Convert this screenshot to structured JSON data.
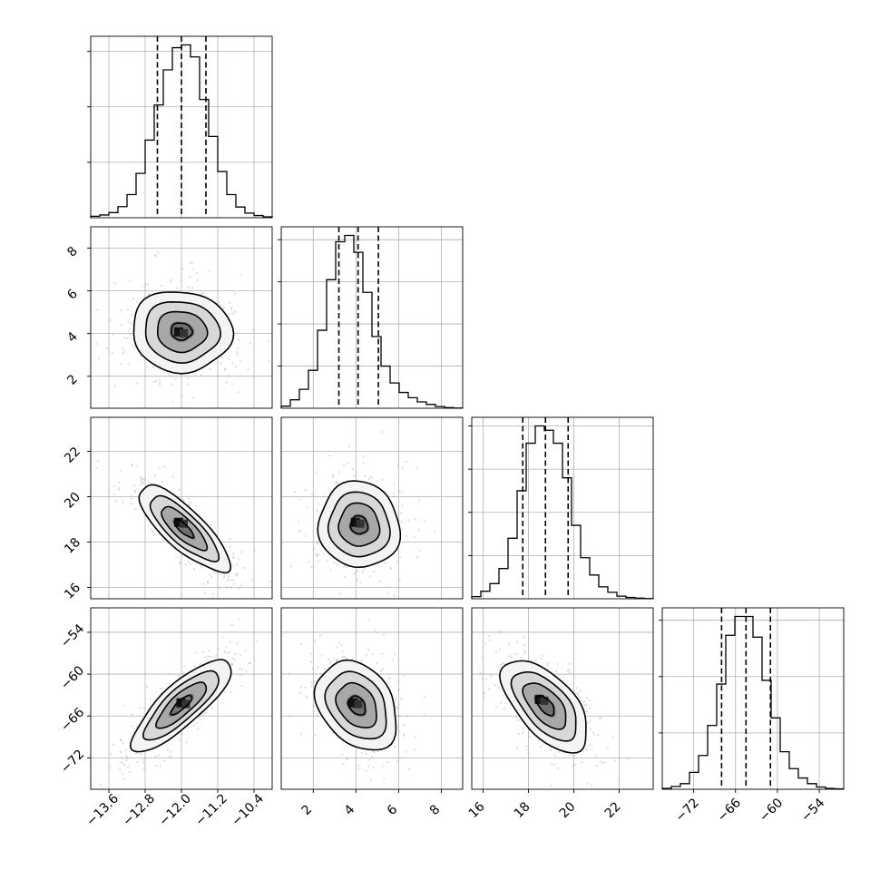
{
  "chart_data": {
    "type": "corner",
    "grid": true,
    "parameters": [
      {
        "range": [
          -14.0,
          -10.0
        ],
        "ticks": [
          -13.6,
          -12.8,
          -12.0,
          -11.2,
          -10.4
        ],
        "tick_labels": [
          "−13.6",
          "−12.8",
          "−12.0",
          "−11.2",
          "−10.4"
        ],
        "quantiles": [
          -12.53,
          -12.0,
          -11.46
        ],
        "hist_ticks": [
          300,
          600,
          900
        ],
        "hist": [
          8,
          15,
          28,
          60,
          125,
          240,
          420,
          610,
          800,
          920,
          935,
          870,
          640,
          440,
          250,
          125,
          58,
          25,
          12,
          5
        ]
      },
      {
        "range": [
          0.5,
          9.0
        ],
        "ticks": [
          2,
          4,
          6,
          8
        ],
        "tick_labels": [
          "2",
          "4",
          "6",
          "8"
        ],
        "quantiles": [
          3.2,
          4.1,
          5.05
        ],
        "hist_ticks": [
          200,
          400,
          600,
          800
        ],
        "hist": [
          10,
          40,
          90,
          180,
          370,
          610,
          790,
          820,
          740,
          550,
          340,
          200,
          120,
          75,
          50,
          30,
          18,
          8,
          3,
          1
        ]
      },
      {
        "range": [
          15.5,
          23.5
        ],
        "ticks": [
          16,
          18,
          20,
          22
        ],
        "tick_labels": [
          "16",
          "18",
          "20",
          "22"
        ],
        "quantiles": [
          17.75,
          18.75,
          19.75
        ],
        "hist_ticks": [
          200,
          400,
          600,
          800
        ],
        "hist": [
          10,
          35,
          70,
          140,
          280,
          500,
          720,
          800,
          780,
          720,
          560,
          340,
          190,
          110,
          55,
          30,
          12,
          6,
          3,
          1
        ]
      },
      {
        "range": [
          -76.5,
          -50.5
        ],
        "ticks": [
          -72,
          -66,
          -60,
          -54
        ],
        "tick_labels": [
          "−72",
          "−66",
          "−60",
          "−54"
        ],
        "quantiles": [
          -68.0,
          -64.5,
          -61.0
        ],
        "hist_ticks": [
          300,
          600,
          900
        ],
        "hist": [
          5,
          15,
          30,
          90,
          180,
          340,
          560,
          820,
          920,
          920,
          810,
          580,
          380,
          200,
          110,
          60,
          30,
          12,
          5,
          2
        ]
      }
    ],
    "pairs": [
      {
        "x": 0,
        "y": 1,
        "mean": [
          -12.0,
          4.1
        ],
        "sd": [
          0.55,
          0.95
        ],
        "rho": -0.05,
        "peak": [
          -12.0,
          3.95
        ]
      },
      {
        "x": 0,
        "y": 2,
        "mean": [
          -11.95,
          18.6
        ],
        "sd": [
          0.5,
          0.95
        ],
        "rho": -0.8,
        "peak": [
          -12.0,
          18.75
        ]
      },
      {
        "x": 1,
        "y": 2,
        "mean": [
          4.15,
          18.75
        ],
        "sd": [
          0.95,
          0.95
        ],
        "rho": -0.05,
        "peak": [
          4.1,
          18.75
        ]
      },
      {
        "x": 0,
        "y": 3,
        "mean": [
          -12.0,
          -64.4
        ],
        "sd": [
          0.55,
          3.3
        ],
        "rho": 0.82,
        "peak": [
          -11.95,
          -64.5
        ]
      },
      {
        "x": 1,
        "y": 3,
        "mean": [
          4.05,
          -64.5
        ],
        "sd": [
          0.95,
          3.2
        ],
        "rho": -0.3,
        "peak": [
          4.0,
          -64.5
        ]
      },
      {
        "x": 2,
        "y": 3,
        "mean": [
          18.75,
          -64.5
        ],
        "sd": [
          0.95,
          3.3
        ],
        "rho": -0.6,
        "peak": [
          18.6,
          -64.0
        ]
      }
    ],
    "contour_levels_sigma": [
      0.5,
      1.0,
      1.5,
      2.0
    ],
    "colors": {
      "line": "#000000",
      "grid": "#b0b0b0",
      "samples": "#9a9a9a"
    }
  }
}
